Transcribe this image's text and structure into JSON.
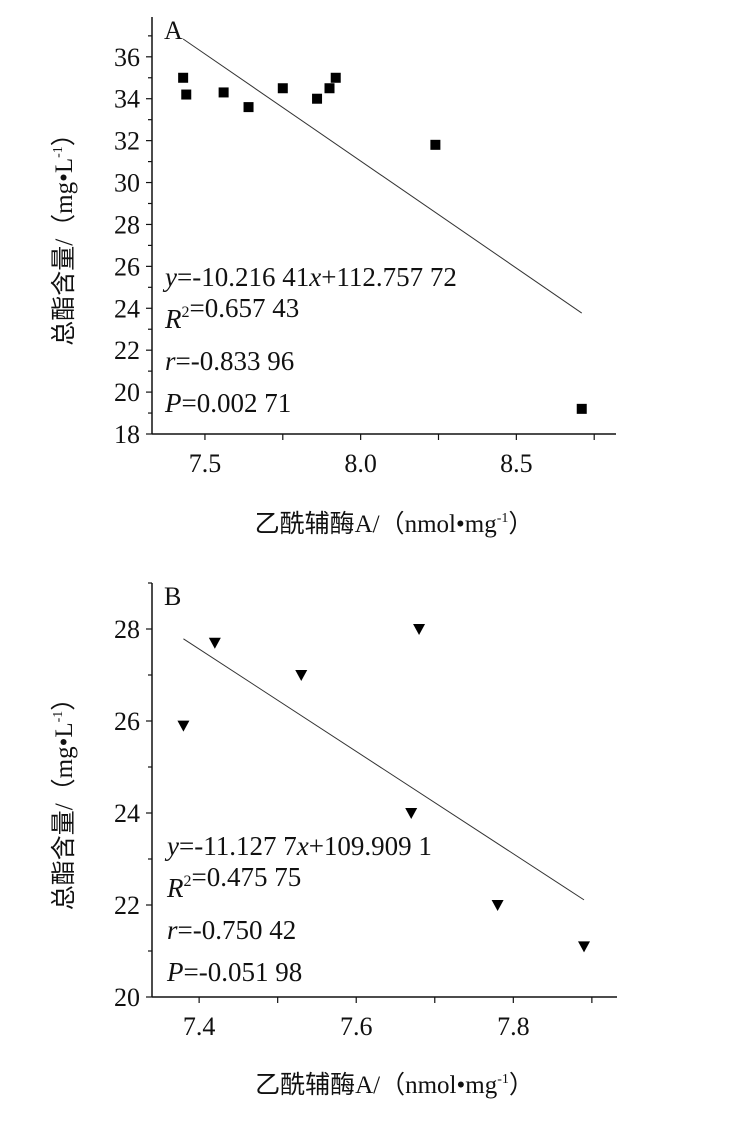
{
  "chart_data": [
    {
      "type": "scatter",
      "panel_label": "A",
      "xlabel": "乙酰辅酶A/（nmol•mg",
      "xlabel_sup": "-1",
      "xlabel_end": "）",
      "ylabel": "总酯含量/（mg•L",
      "ylabel_sup": "-1",
      "ylabel_end": "）",
      "xlim": [
        7.33,
        8.82
      ],
      "ylim": [
        18,
        37.9
      ],
      "xticks": [
        7.5,
        8.0,
        8.5
      ],
      "xtick_labels": [
        "7.5",
        "8.0",
        "8.5"
      ],
      "xminor": 0.25,
      "yticks": [
        18,
        20,
        22,
        24,
        26,
        28,
        30,
        32,
        34,
        36
      ],
      "yminor": 1,
      "marker": "square",
      "points": [
        [
          7.43,
          35.0
        ],
        [
          7.44,
          34.2
        ],
        [
          7.56,
          34.3
        ],
        [
          7.64,
          33.6
        ],
        [
          7.75,
          34.5
        ],
        [
          7.86,
          34.0
        ],
        [
          7.9,
          34.5
        ],
        [
          7.92,
          35.0
        ],
        [
          8.24,
          31.8
        ],
        [
          8.71,
          19.2
        ]
      ],
      "fit": {
        "slope": -10.21641,
        "intercept": 112.75772,
        "x_range": [
          7.43,
          8.71
        ]
      },
      "annotations": [
        [
          {
            "t": "y",
            "i": true
          },
          {
            "t": "=-10.216 41"
          },
          {
            "t": "x",
            "i": true
          },
          {
            "t": "+112.757 72"
          }
        ],
        [
          {
            "t": "R",
            "i": true
          },
          {
            "t": "2",
            "sup": true
          },
          {
            "t": "=0.657 43"
          }
        ],
        [
          {
            "t": "r",
            "i": true
          },
          {
            "t": "=-0.833 96"
          }
        ],
        [
          {
            "t": "P",
            "i": true
          },
          {
            "t": "=0.002 71"
          }
        ]
      ],
      "grid": false
    },
    {
      "type": "scatter",
      "panel_label": "B",
      "xlabel": "乙酰辅酶A/（nmol•mg",
      "xlabel_sup": "-1",
      "xlabel_end": "）",
      "ylabel": "总酯含量/（mg•L",
      "ylabel_sup": "-1",
      "ylabel_end": "）",
      "xlim": [
        7.34,
        7.932
      ],
      "ylim": [
        20,
        29
      ],
      "xticks": [
        7.4,
        7.6,
        7.8
      ],
      "xtick_labels": [
        "7.4",
        "7.6",
        "7.8"
      ],
      "xminor": 0.1,
      "yticks": [
        20,
        22,
        24,
        26,
        28
      ],
      "yminor": 1,
      "marker": "triangle-down",
      "points": [
        [
          7.38,
          25.9
        ],
        [
          7.42,
          27.7
        ],
        [
          7.53,
          27.0
        ],
        [
          7.68,
          28.0
        ],
        [
          7.67,
          24.0
        ],
        [
          7.78,
          22.0
        ],
        [
          7.89,
          21.1
        ]
      ],
      "fit": {
        "slope": -11.1277,
        "intercept": 109.9091,
        "x_range": [
          7.38,
          7.89
        ]
      },
      "annotations": [
        [
          {
            "t": "y",
            "i": true
          },
          {
            "t": "=-11.127 7"
          },
          {
            "t": "x",
            "i": true
          },
          {
            "t": "+109.909 1"
          }
        ],
        [
          {
            "t": "R",
            "i": true
          },
          {
            "t": "2",
            "sup": true
          },
          {
            "t": "=0.475 75"
          }
        ],
        [
          {
            "t": "r",
            "i": true
          },
          {
            "t": "=-0.750 42"
          }
        ],
        [
          {
            "t": "P",
            "i": true
          },
          {
            "t": "=-0.051 98"
          }
        ]
      ],
      "grid": false
    }
  ]
}
